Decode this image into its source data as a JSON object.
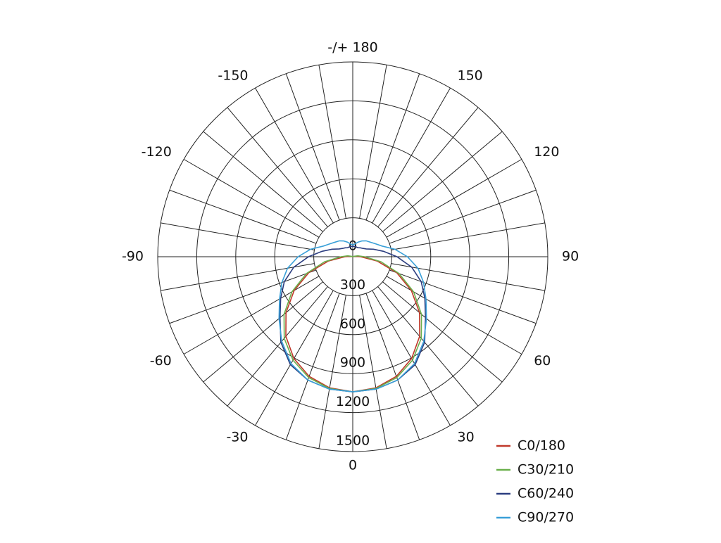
{
  "chart_data": {
    "type": "polar",
    "angles": [
      -180,
      -170,
      -160,
      -150,
      -140,
      -130,
      -120,
      -110,
      -100,
      -90,
      -80,
      -70,
      -60,
      -50,
      -40,
      -30,
      -20,
      -10,
      0,
      10,
      20,
      30,
      40,
      50,
      60,
      70,
      80,
      90,
      100,
      110,
      120,
      130,
      140,
      150,
      160,
      170,
      180
    ],
    "series": [
      {
        "name": "C0/180",
        "color": "#c0392b",
        "values": [
          0,
          0,
          0,
          0,
          0,
          0,
          0,
          0,
          20,
          60,
          190,
          360,
          520,
          670,
          800,
          905,
          980,
          1025,
          1040,
          1025,
          980,
          905,
          800,
          670,
          520,
          360,
          190,
          60,
          20,
          0,
          0,
          0,
          0,
          0,
          0,
          0,
          0
        ]
      },
      {
        "name": "C30/210",
        "color": "#6ab04c",
        "values": [
          0,
          0,
          0,
          0,
          0,
          0,
          0,
          10,
          40,
          90,
          220,
          380,
          540,
          690,
          820,
          920,
          990,
          1030,
          1040,
          1030,
          990,
          920,
          820,
          690,
          540,
          380,
          220,
          90,
          40,
          10,
          0,
          0,
          0,
          0,
          0,
          0,
          0
        ]
      },
      {
        "name": "C60/240",
        "color": "#2c3e80",
        "values": [
          80,
          80,
          80,
          80,
          90,
          100,
          120,
          170,
          240,
          340,
          460,
          560,
          640,
          730,
          860,
          960,
          1010,
          1035,
          1040,
          1035,
          1010,
          960,
          860,
          730,
          640,
          560,
          460,
          340,
          240,
          170,
          120,
          100,
          90,
          80,
          80,
          80,
          80
        ]
      },
      {
        "name": "C90/270",
        "color": "#3aa0d8",
        "values": [
          90,
          100,
          120,
          140,
          160,
          175,
          200,
          240,
          330,
          420,
          510,
          580,
          650,
          740,
          850,
          950,
          1010,
          1035,
          1040,
          1035,
          1010,
          950,
          850,
          740,
          650,
          580,
          510,
          420,
          330,
          240,
          200,
          175,
          160,
          140,
          120,
          100,
          90
        ]
      }
    ],
    "rlim": [
      0,
      1500
    ],
    "rticks": [
      0,
      300,
      600,
      900,
      1200,
      1500
    ],
    "thetaticks": [
      {
        "value": 180,
        "label": "-/+ 180"
      },
      150,
      -150,
      120,
      -120,
      90,
      -90,
      60,
      -60,
      30,
      -30,
      0
    ],
    "grid": true
  }
}
